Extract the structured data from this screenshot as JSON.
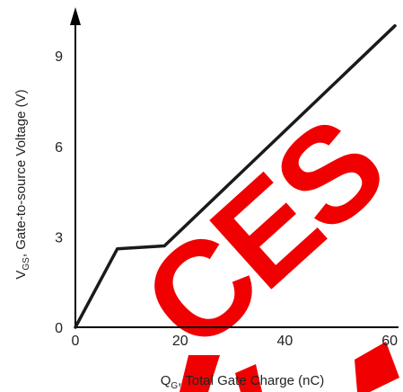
{
  "chart_data": {
    "type": "line",
    "xlabel": {
      "main": "Q",
      "sub": "G",
      "rest": ", Total Gate Charge (nC)"
    },
    "ylabel": {
      "main": "V",
      "sub": "GS",
      "rest": ", Gate-to-source Voltage (V)"
    },
    "xlim": [
      0,
      61
    ],
    "ylim": [
      0,
      10.2
    ],
    "x_ticks": [
      0,
      20,
      40,
      60
    ],
    "x_tick_labels": [
      "0",
      "20",
      "40",
      "60"
    ],
    "y_ticks": [
      0,
      3,
      6,
      9
    ],
    "y_tick_labels": [
      "0",
      "3",
      "6",
      "9"
    ],
    "grid": false,
    "series": [
      {
        "color": "#1a1a1a",
        "x": [
          0,
          8,
          17,
          61
        ],
        "y": [
          0,
          2.6,
          2.7,
          10.0
        ]
      }
    ]
  },
  "watermark": {
    "text": "CES",
    "color": "#f00000"
  }
}
